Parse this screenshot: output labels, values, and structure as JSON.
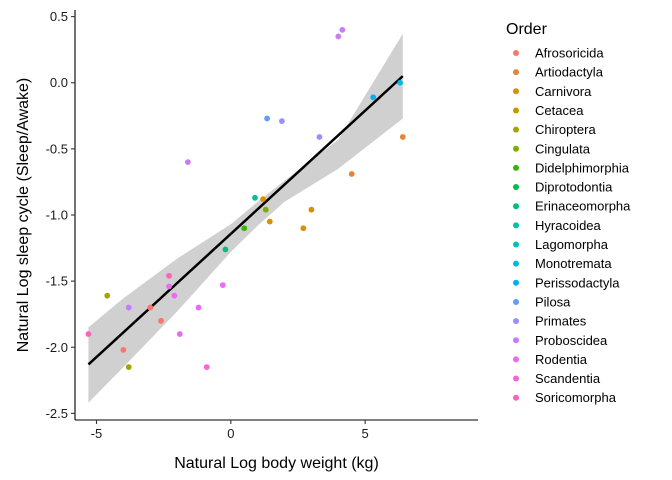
{
  "chart_data": {
    "type": "scatter",
    "xlabel": "Natural Log body weight (kg)",
    "ylabel": "Natural Log sleep cycle (Sleep/Awake)",
    "xlim": [
      -5.8,
      9.2
    ],
    "ylim": [
      -2.55,
      0.55
    ],
    "x_ticks": [
      -5,
      0,
      5
    ],
    "y_ticks": [
      0.5,
      0.0,
      -0.5,
      -1.0,
      -1.5,
      -2.0,
      -2.5
    ],
    "x_tick_labels": [
      "-5",
      "0",
      "5"
    ],
    "y_tick_labels": [
      "0.5",
      "0.0",
      "-0.5",
      "-1.0",
      "-1.5",
      "-2.0",
      "-2.5"
    ],
    "legend_title": "Order",
    "legend_position": "right",
    "orders": [
      {
        "name": "Afrosoricida",
        "color": "#F8766D"
      },
      {
        "name": "Artiodactyla",
        "color": "#EA8331"
      },
      {
        "name": "Carnivora",
        "color": "#D89000"
      },
      {
        "name": "Cetacea",
        "color": "#C09B00"
      },
      {
        "name": "Chiroptera",
        "color": "#A3A500"
      },
      {
        "name": "Cingulata",
        "color": "#7CAE00"
      },
      {
        "name": "Didelphimorphia",
        "color": "#39B600"
      },
      {
        "name": "Diprotodontia",
        "color": "#00BB4E"
      },
      {
        "name": "Erinaceomorpha",
        "color": "#00BF7D"
      },
      {
        "name": "Hyracoidea",
        "color": "#00C1A3"
      },
      {
        "name": "Lagomorpha",
        "color": "#00BFC4"
      },
      {
        "name": "Monotremata",
        "color": "#00BAE0"
      },
      {
        "name": "Perissodactyla",
        "color": "#00B0F6"
      },
      {
        "name": "Pilosa",
        "color": "#619CFF"
      },
      {
        "name": "Primates",
        "color": "#9590FF"
      },
      {
        "name": "Proboscidea",
        "color": "#C77CFF"
      },
      {
        "name": "Rodentia",
        "color": "#E76BF3"
      },
      {
        "name": "Scandentia",
        "color": "#FA62DB"
      },
      {
        "name": "Soricomorpha",
        "color": "#FF62BC"
      }
    ],
    "points": [
      {
        "x": -5.3,
        "y": -1.9,
        "color": "#FF62BC"
      },
      {
        "x": -4.6,
        "y": -1.61,
        "color": "#A3A500"
      },
      {
        "x": -4.0,
        "y": -2.02,
        "color": "#F8766D"
      },
      {
        "x": -3.8,
        "y": -1.7,
        "color": "#C77CFF"
      },
      {
        "x": -3.8,
        "y": -2.15,
        "color": "#A3A500"
      },
      {
        "x": -3.0,
        "y": -1.7,
        "color": "#F8766D"
      },
      {
        "x": -2.6,
        "y": -1.8,
        "color": "#F8766D"
      },
      {
        "x": -2.3,
        "y": -1.46,
        "color": "#FF62BC"
      },
      {
        "x": -2.3,
        "y": -1.54,
        "color": "#E76BF3"
      },
      {
        "x": -2.1,
        "y": -1.61,
        "color": "#E76BF3"
      },
      {
        "x": -1.9,
        "y": -1.9,
        "color": "#E76BF3"
      },
      {
        "x": -1.6,
        "y": -0.6,
        "color": "#C77CFF"
      },
      {
        "x": -1.2,
        "y": -1.7,
        "color": "#E76BF3"
      },
      {
        "x": -0.9,
        "y": -2.15,
        "color": "#FA62DB"
      },
      {
        "x": -0.3,
        "y": -1.53,
        "color": "#E76BF3"
      },
      {
        "x": -0.2,
        "y": -1.26,
        "color": "#00BF7D"
      },
      {
        "x": 0.5,
        "y": -1.1,
        "color": "#39B600"
      },
      {
        "x": 0.9,
        "y": -0.87,
        "color": "#00C1A3"
      },
      {
        "x": 1.2,
        "y": -0.88,
        "color": "#D89000"
      },
      {
        "x": 1.3,
        "y": -0.96,
        "color": "#7CAE00"
      },
      {
        "x": 1.35,
        "y": -0.27,
        "color": "#619CFF"
      },
      {
        "x": 1.45,
        "y": -1.05,
        "color": "#D89000"
      },
      {
        "x": 1.9,
        "y": -0.29,
        "color": "#9590FF"
      },
      {
        "x": 2.7,
        "y": -1.1,
        "color": "#D89000"
      },
      {
        "x": 3.0,
        "y": -0.96,
        "color": "#D89000"
      },
      {
        "x": 3.3,
        "y": -0.41,
        "color": "#9590FF"
      },
      {
        "x": 4.0,
        "y": 0.35,
        "color": "#C77CFF"
      },
      {
        "x": 4.15,
        "y": 0.4,
        "color": "#C77CFF"
      },
      {
        "x": 4.5,
        "y": -0.69,
        "color": "#EA8331"
      },
      {
        "x": 5.3,
        "y": -0.11,
        "color": "#00B0F6"
      },
      {
        "x": 6.3,
        "y": 0.0,
        "color": "#00BAE0"
      },
      {
        "x": 6.4,
        "y": -0.41,
        "color": "#EA8331"
      }
    ],
    "fit_line": {
      "x": [
        -5.3,
        6.4
      ],
      "y": [
        -2.13,
        0.05
      ],
      "color": "#000000"
    },
    "confidence_band": {
      "x": [
        -5.3,
        -4,
        -2,
        0,
        1,
        2,
        4,
        6.4
      ],
      "upper": [
        -1.85,
        -1.63,
        -1.33,
        -1.07,
        -0.9,
        -0.74,
        -0.43,
        0.37
      ],
      "lower": [
        -2.42,
        -2.15,
        -1.73,
        -1.28,
        -1.08,
        -0.9,
        -0.65,
        -0.27
      ],
      "color": "#C8C8C8"
    }
  }
}
